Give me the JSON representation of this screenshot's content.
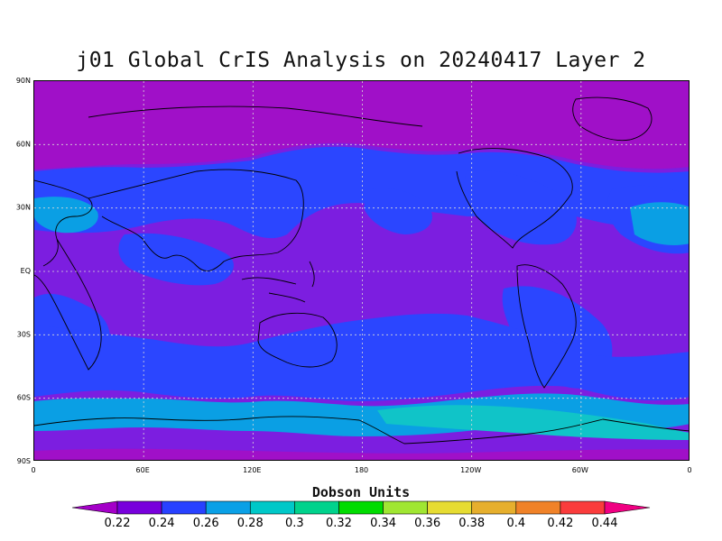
{
  "title": "j01 Global CrIS Analysis on 20240417 Layer 2",
  "map": {
    "lat_labels": [
      "90N",
      "60N",
      "30N",
      "EQ",
      "30S",
      "60S",
      "90S"
    ],
    "lon_labels": [
      "0",
      "60E",
      "120E",
      "180",
      "120W",
      "60W",
      "0"
    ],
    "grid": true,
    "grid_style": "dashed"
  },
  "colorbar": {
    "title": "Dobson Units",
    "levels": [
      "0.22",
      "0.24",
      "0.26",
      "0.28",
      "0.3",
      "0.32",
      "0.34",
      "0.36",
      "0.38",
      "0.4",
      "0.42",
      "0.44"
    ],
    "colors": [
      "#a400c8",
      "#7800dc",
      "#2841ff",
      "#0aa0e6",
      "#00c8c8",
      "#00d28c",
      "#00dc00",
      "#a0e632",
      "#e6dc32",
      "#e6af2d",
      "#f08228",
      "#fa3c3c",
      "#f00082"
    ]
  },
  "field_colors": {
    "polar_high": "#a010c8",
    "background": "#7c1ee0",
    "blue": "#2b46ff",
    "light_blue": "#0a9fe4",
    "cyan": "#10c4c8",
    "magenta_edge": "#c41498"
  }
}
